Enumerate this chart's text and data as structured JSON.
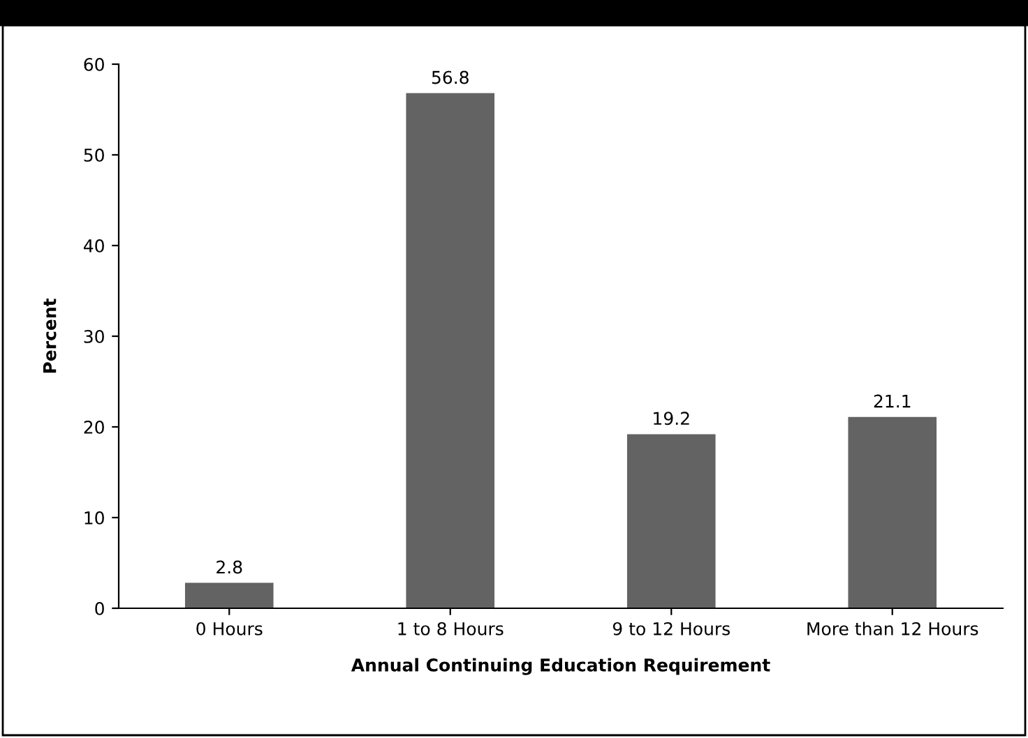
{
  "chart_data": {
    "type": "bar",
    "xlabel": "Annual Continuing Education Requirement",
    "ylabel": "Percent",
    "categories": [
      "0 Hours",
      "1 to 8 Hours",
      "9 to 12 Hours",
      "More than 12 Hours"
    ],
    "values": [
      2.8,
      56.8,
      19.2,
      21.1
    ],
    "color": "#636363",
    "ylim": [
      0,
      60
    ],
    "yticks": [
      0,
      10,
      20,
      30,
      40,
      50,
      60
    ],
    "grid": false,
    "data_labels": true
  }
}
